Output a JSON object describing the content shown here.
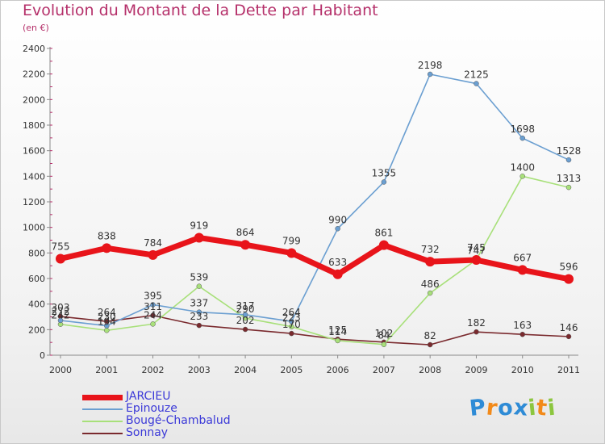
{
  "chart_data": {
    "type": "line",
    "title": "Evolution du Montant de la Dette par Habitant",
    "subtitle": "(en €)",
    "x": [
      "2000",
      "2001",
      "2002",
      "2003",
      "2004",
      "2005",
      "2006",
      "2007",
      "2008",
      "2009",
      "2010",
      "2011"
    ],
    "ylim": [
      0,
      2400
    ],
    "yticks": [
      0,
      200,
      400,
      600,
      800,
      1000,
      1200,
      1400,
      1600,
      1800,
      2000,
      2200,
      2400
    ],
    "grid": false,
    "legend_position": "bottom-left",
    "series": [
      {
        "name": "JARCIEU",
        "color": "#e8141a",
        "values": [
          755,
          838,
          784,
          919,
          864,
          799,
          633,
          861,
          732,
          745,
          667,
          596
        ]
      },
      {
        "name": "Epinouze",
        "color": "#6b9fd1",
        "values": [
          272,
          230,
          395,
          337,
          317,
          264,
          990,
          1355,
          2198,
          2125,
          1698,
          1528
        ]
      },
      {
        "name": "Bougé-Chambalud",
        "color": "#a8e07a",
        "values": [
          242,
          194,
          244,
          539,
          290,
          223,
          114,
          84,
          486,
          747,
          1400,
          1313
        ]
      },
      {
        "name": "Sonnay",
        "color": "#7a2a2e",
        "values": [
          303,
          264,
          311,
          233,
          202,
          170,
          125,
          102,
          82,
          182,
          163,
          146
        ]
      }
    ]
  },
  "logo": {
    "letters": [
      "P",
      "r",
      "o",
      "x",
      "i",
      "t",
      "i"
    ],
    "colors": [
      "#2e8bd6",
      "#f28a1a",
      "#2e8bd6",
      "#2e8bd6",
      "#8cc63f",
      "#f28a1a",
      "#8cc63f"
    ]
  }
}
